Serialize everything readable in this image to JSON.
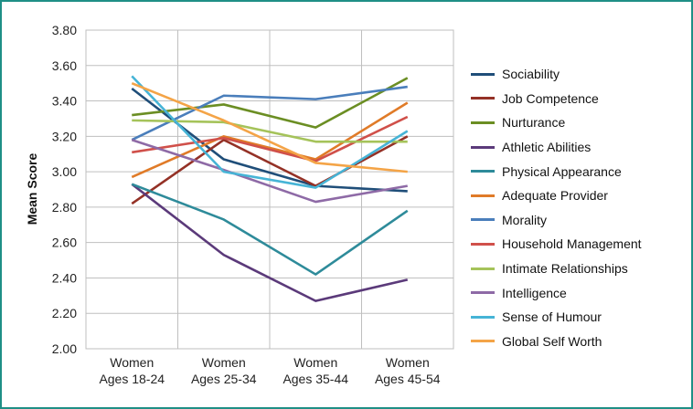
{
  "chart_data": {
    "type": "line",
    "title": "",
    "xlabel": "",
    "ylabel": "Mean Score",
    "ylim": [
      2.0,
      3.8
    ],
    "yticks": [
      "2.00",
      "2.20",
      "2.40",
      "2.60",
      "2.80",
      "3.00",
      "3.20",
      "3.40",
      "3.60",
      "3.80"
    ],
    "grid": "horizontal",
    "legend": "right",
    "categories": [
      [
        "Women",
        "Ages 18-24"
      ],
      [
        "Women",
        "Ages 25-34"
      ],
      [
        "Women",
        "Ages 35-44"
      ],
      [
        "Women",
        "Ages 45-54"
      ]
    ],
    "series": [
      {
        "name": "Sociability",
        "color": "#1f4e79",
        "values": [
          3.47,
          3.07,
          2.92,
          2.89
        ]
      },
      {
        "name": "Job Competence",
        "color": "#943126",
        "values": [
          2.82,
          3.18,
          2.92,
          3.2
        ]
      },
      {
        "name": "Nurturance",
        "color": "#6b8e23",
        "values": [
          3.32,
          3.38,
          3.25,
          3.53
        ]
      },
      {
        "name": "Athletic Abilities",
        "color": "#5b3a7a",
        "values": [
          2.93,
          2.53,
          2.27,
          2.39
        ]
      },
      {
        "name": "Physical Appearance",
        "color": "#2e8b9a",
        "values": [
          2.93,
          2.73,
          2.42,
          2.78
        ]
      },
      {
        "name": "Adequate Provider",
        "color": "#e07b28",
        "values": [
          2.97,
          3.2,
          3.07,
          3.39
        ]
      },
      {
        "name": "Morality",
        "color": "#4a7ebb",
        "values": [
          3.18,
          3.43,
          3.41,
          3.48
        ]
      },
      {
        "name": "Household Management",
        "color": "#d0504a",
        "values": [
          3.11,
          3.19,
          3.06,
          3.31
        ]
      },
      {
        "name": "Intimate Relationships",
        "color": "#a5c35a",
        "values": [
          3.29,
          3.28,
          3.17,
          3.17
        ]
      },
      {
        "name": "Intelligence",
        "color": "#8e6aa6",
        "values": [
          3.18,
          3.01,
          2.83,
          2.92
        ]
      },
      {
        "name": "Sense of Humour",
        "color": "#46b4d6",
        "values": [
          3.54,
          3.0,
          2.91,
          3.23
        ]
      },
      {
        "name": "Global Self Worth",
        "color": "#f4a447",
        "values": [
          3.5,
          3.29,
          3.05,
          3.0
        ]
      }
    ]
  }
}
